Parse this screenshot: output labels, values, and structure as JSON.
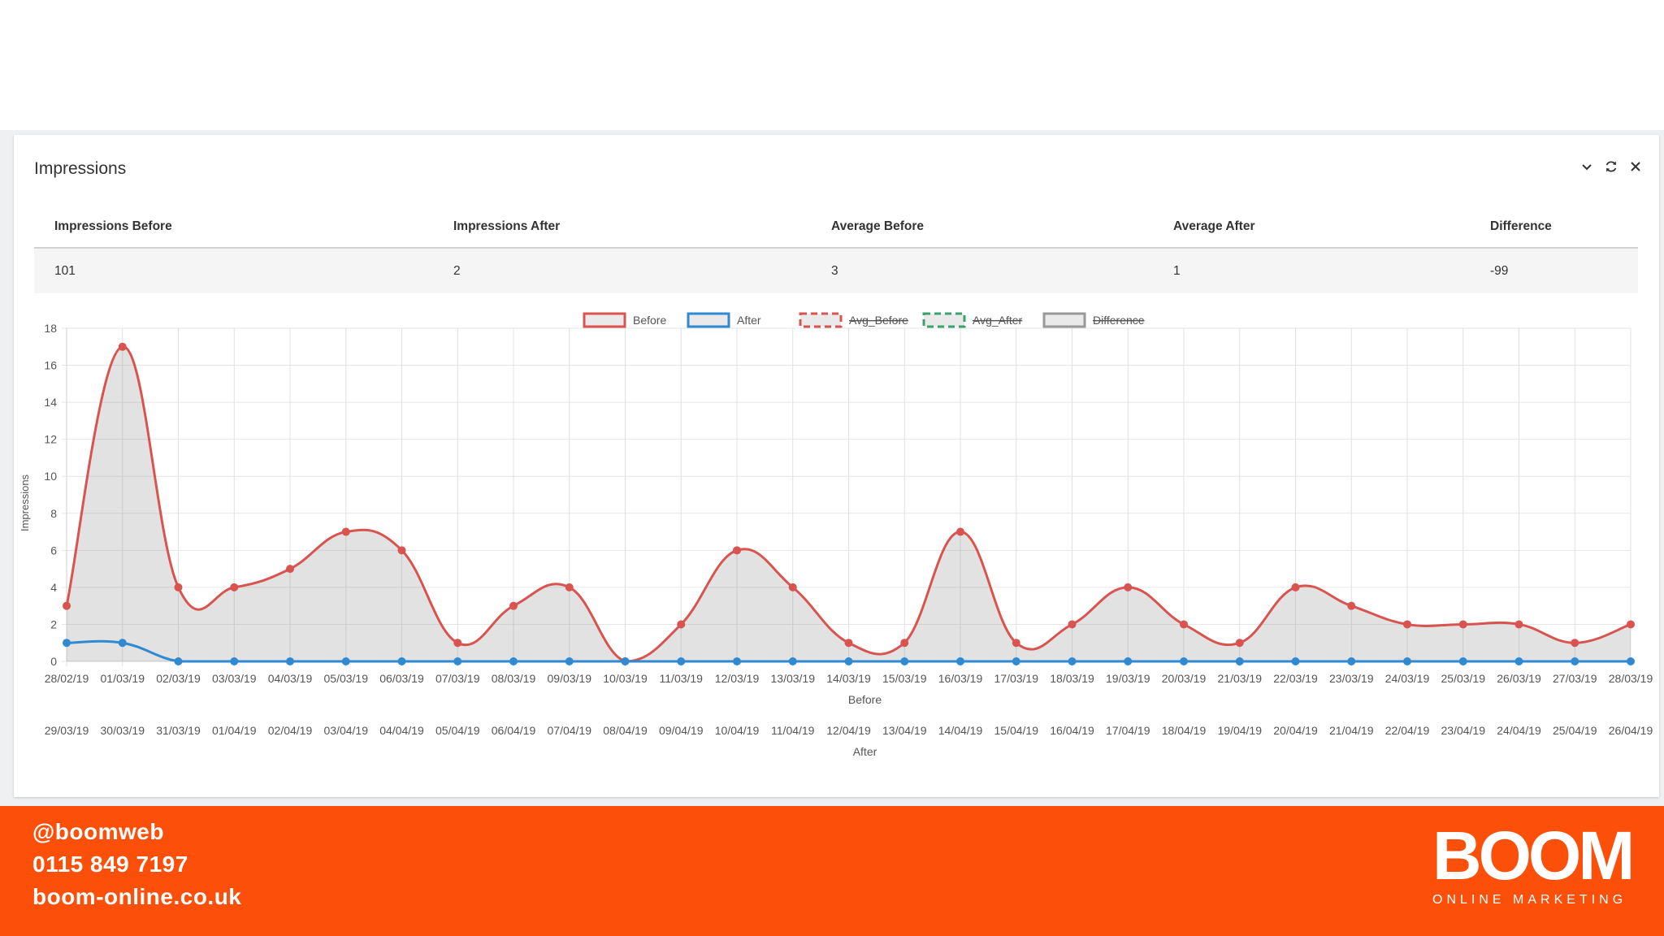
{
  "panel": {
    "title": "Impressions"
  },
  "stats": {
    "headers": [
      "Impressions Before",
      "Impressions After",
      "Average Before",
      "Average After",
      "Difference"
    ],
    "values": [
      "101",
      "2",
      "3",
      "1",
      "-99"
    ]
  },
  "chart_data": {
    "type": "area",
    "ylabel": "Impressions",
    "xlabel_before": "Before",
    "xlabel_after": "After",
    "ylim": [
      0,
      18
    ],
    "yticks": [
      0,
      2,
      4,
      6,
      8,
      10,
      12,
      14,
      16,
      18
    ],
    "grid": true,
    "legend_position": "top",
    "legend": [
      {
        "name": "Before",
        "color": "#d9534f",
        "style": "solid",
        "hidden": false
      },
      {
        "name": "After",
        "color": "#2f8ad1",
        "style": "solid",
        "hidden": false
      },
      {
        "name": "Avg_Before",
        "color": "#d9534f",
        "style": "dashed",
        "hidden": true
      },
      {
        "name": "Avg_After",
        "color": "#3aa36b",
        "style": "dashed",
        "hidden": true
      },
      {
        "name": "Difference",
        "color": "#999999",
        "style": "solid",
        "hidden": true
      }
    ],
    "categories_before": [
      "28/02/19",
      "01/03/19",
      "02/03/19",
      "03/03/19",
      "04/03/19",
      "05/03/19",
      "06/03/19",
      "07/03/19",
      "08/03/19",
      "09/03/19",
      "10/03/19",
      "11/03/19",
      "12/03/19",
      "13/03/19",
      "14/03/19",
      "15/03/19",
      "16/03/19",
      "17/03/19",
      "18/03/19",
      "19/03/19",
      "20/03/19",
      "21/03/19",
      "22/03/19",
      "23/03/19",
      "24/03/19",
      "25/03/19",
      "26/03/19",
      "27/03/19",
      "28/03/19"
    ],
    "categories_after": [
      "29/03/19",
      "30/03/19",
      "31/03/19",
      "01/04/19",
      "02/04/19",
      "03/04/19",
      "04/04/19",
      "05/04/19",
      "06/04/19",
      "07/04/19",
      "08/04/19",
      "09/04/19",
      "10/04/19",
      "11/04/19",
      "12/04/19",
      "13/04/19",
      "14/04/19",
      "15/04/19",
      "16/04/19",
      "17/04/19",
      "18/04/19",
      "19/04/19",
      "20/04/19",
      "21/04/19",
      "22/04/19",
      "23/04/19",
      "24/04/19",
      "25/04/19",
      "26/04/19"
    ],
    "series": [
      {
        "name": "Before",
        "values": [
          3,
          17,
          4,
          4,
          5,
          7,
          6,
          1,
          3,
          4,
          0,
          2,
          6,
          4,
          1,
          1,
          7,
          1,
          2,
          4,
          2,
          1,
          4,
          3,
          2,
          2,
          2,
          1,
          2
        ]
      },
      {
        "name": "After",
        "values": [
          1,
          1,
          0,
          0,
          0,
          0,
          0,
          0,
          0,
          0,
          0,
          0,
          0,
          0,
          0,
          0,
          0,
          0,
          0,
          0,
          0,
          0,
          0,
          0,
          0,
          0,
          0,
          0,
          0
        ]
      }
    ]
  },
  "footer": {
    "twitter": "@boomweb",
    "phone": "0115 849 7197",
    "website": "boom-online.co.uk",
    "logo_text": "BOOM",
    "logo_subtext": "ONLINE MARKETING",
    "background_color": "#fc4f09"
  }
}
